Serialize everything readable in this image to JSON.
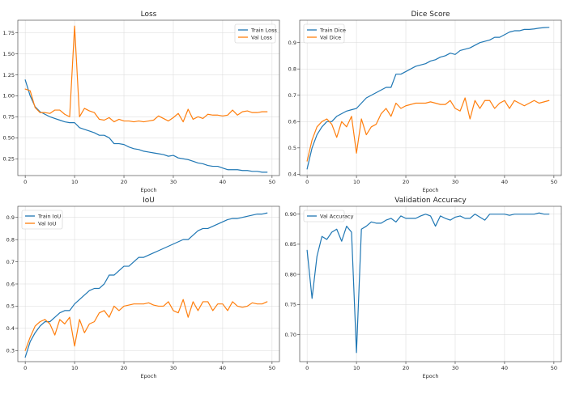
{
  "colors": {
    "train": "#1f77b4",
    "val": "#ff7f0e"
  },
  "chart_data": [
    {
      "type": "line",
      "title": "Loss",
      "xlabel": "Epoch",
      "ylabel": "",
      "xlim": [
        -1.5,
        51.5
      ],
      "ylim": [
        0.05,
        1.9
      ],
      "xticks": [
        0,
        10,
        20,
        30,
        40,
        50
      ],
      "yticks": [
        0.25,
        0.5,
        0.75,
        1.0,
        1.25,
        1.5,
        1.75
      ],
      "ytick_labels": [
        "0.25",
        "0.50",
        "0.75",
        "1.00",
        "1.25",
        "1.50",
        "1.75"
      ],
      "grid": true,
      "legend_position": "top-right",
      "series": [
        {
          "name": "Train Loss",
          "color": "#1f77b4",
          "values": [
            1.19,
            1.0,
            0.87,
            0.81,
            0.78,
            0.75,
            0.73,
            0.71,
            0.69,
            0.68,
            0.68,
            0.62,
            0.6,
            0.58,
            0.56,
            0.53,
            0.53,
            0.5,
            0.43,
            0.43,
            0.42,
            0.39,
            0.37,
            0.36,
            0.34,
            0.33,
            0.32,
            0.31,
            0.3,
            0.28,
            0.29,
            0.26,
            0.25,
            0.24,
            0.22,
            0.2,
            0.19,
            0.17,
            0.16,
            0.16,
            0.14,
            0.12,
            0.12,
            0.12,
            0.11,
            0.11,
            0.1,
            0.1,
            0.09,
            0.09
          ]
        },
        {
          "name": "Val Loss",
          "color": "#ff7f0e",
          "values": [
            1.08,
            1.06,
            0.86,
            0.8,
            0.8,
            0.79,
            0.83,
            0.83,
            0.78,
            0.75,
            1.83,
            0.75,
            0.85,
            0.82,
            0.8,
            0.72,
            0.71,
            0.74,
            0.69,
            0.72,
            0.7,
            0.7,
            0.69,
            0.7,
            0.69,
            0.7,
            0.71,
            0.76,
            0.73,
            0.7,
            0.74,
            0.79,
            0.69,
            0.84,
            0.72,
            0.75,
            0.73,
            0.78,
            0.77,
            0.77,
            0.76,
            0.77,
            0.83,
            0.77,
            0.81,
            0.82,
            0.8,
            0.8,
            0.81,
            0.81
          ]
        }
      ]
    },
    {
      "type": "line",
      "title": "Dice Score",
      "xlabel": "Epoch",
      "ylabel": "",
      "xlim": [
        -1.5,
        51.5
      ],
      "ylim": [
        0.395,
        0.985
      ],
      "xticks": [
        0,
        10,
        20,
        30,
        40,
        50
      ],
      "yticks": [
        0.4,
        0.5,
        0.6,
        0.7,
        0.8,
        0.9
      ],
      "ytick_labels": [
        "0.4",
        "0.5",
        "0.6",
        "0.7",
        "0.8",
        "0.9"
      ],
      "grid": true,
      "legend_position": "top-left",
      "series": [
        {
          "name": "Train Dice",
          "color": "#1f77b4",
          "values": [
            0.42,
            0.5,
            0.55,
            0.58,
            0.6,
            0.6,
            0.62,
            0.63,
            0.64,
            0.645,
            0.65,
            0.67,
            0.69,
            0.7,
            0.71,
            0.72,
            0.73,
            0.73,
            0.78,
            0.78,
            0.79,
            0.8,
            0.81,
            0.815,
            0.82,
            0.83,
            0.835,
            0.845,
            0.85,
            0.86,
            0.855,
            0.87,
            0.875,
            0.88,
            0.89,
            0.9,
            0.905,
            0.91,
            0.92,
            0.92,
            0.93,
            0.94,
            0.945,
            0.945,
            0.95,
            0.95,
            0.952,
            0.955,
            0.957,
            0.958
          ]
        },
        {
          "name": "Val Dice",
          "color": "#ff7f0e",
          "values": [
            0.45,
            0.53,
            0.58,
            0.6,
            0.61,
            0.59,
            0.54,
            0.6,
            0.58,
            0.62,
            0.48,
            0.61,
            0.55,
            0.58,
            0.59,
            0.63,
            0.65,
            0.62,
            0.67,
            0.65,
            0.66,
            0.665,
            0.67,
            0.67,
            0.67,
            0.675,
            0.67,
            0.665,
            0.665,
            0.68,
            0.65,
            0.64,
            0.69,
            0.61,
            0.68,
            0.65,
            0.68,
            0.68,
            0.65,
            0.67,
            0.68,
            0.65,
            0.68,
            0.67,
            0.66,
            0.67,
            0.68,
            0.67,
            0.675,
            0.68
          ]
        }
      ]
    },
    {
      "type": "line",
      "title": "IoU",
      "xlabel": "Epoch",
      "ylabel": "",
      "xlim": [
        -1.5,
        51.5
      ],
      "ylim": [
        0.25,
        0.95
      ],
      "xticks": [
        0,
        10,
        20,
        30,
        40,
        50
      ],
      "yticks": [
        0.3,
        0.4,
        0.5,
        0.6,
        0.7,
        0.8,
        0.9
      ],
      "ytick_labels": [
        "0.3",
        "0.4",
        "0.5",
        "0.6",
        "0.7",
        "0.8",
        "0.9"
      ],
      "grid": true,
      "legend_position": "top-left",
      "series": [
        {
          "name": "Train IoU",
          "color": "#1f77b4",
          "values": [
            0.27,
            0.34,
            0.38,
            0.41,
            0.43,
            0.43,
            0.45,
            0.47,
            0.48,
            0.48,
            0.51,
            0.53,
            0.55,
            0.57,
            0.58,
            0.58,
            0.6,
            0.64,
            0.64,
            0.66,
            0.68,
            0.68,
            0.7,
            0.72,
            0.72,
            0.73,
            0.74,
            0.75,
            0.76,
            0.77,
            0.78,
            0.79,
            0.8,
            0.8,
            0.82,
            0.84,
            0.85,
            0.85,
            0.86,
            0.87,
            0.88,
            0.89,
            0.895,
            0.895,
            0.9,
            0.905,
            0.91,
            0.915,
            0.915,
            0.92
          ]
        },
        {
          "name": "Val IoU",
          "color": "#ff7f0e",
          "values": [
            0.3,
            0.36,
            0.41,
            0.43,
            0.44,
            0.42,
            0.37,
            0.44,
            0.42,
            0.45,
            0.32,
            0.44,
            0.38,
            0.42,
            0.43,
            0.47,
            0.48,
            0.45,
            0.5,
            0.48,
            0.5,
            0.505,
            0.51,
            0.51,
            0.51,
            0.515,
            0.505,
            0.5,
            0.5,
            0.52,
            0.48,
            0.47,
            0.53,
            0.45,
            0.52,
            0.48,
            0.52,
            0.52,
            0.48,
            0.51,
            0.51,
            0.48,
            0.52,
            0.5,
            0.495,
            0.5,
            0.515,
            0.51,
            0.51,
            0.52
          ]
        }
      ]
    },
    {
      "type": "line",
      "title": "Validation Accuracy",
      "xlabel": "Epoch",
      "ylabel": "",
      "xlim": [
        -1.5,
        51.5
      ],
      "ylim": [
        0.655,
        0.913
      ],
      "xticks": [
        0,
        10,
        20,
        30,
        40,
        50
      ],
      "yticks": [
        0.7,
        0.75,
        0.8,
        0.85,
        0.9
      ],
      "ytick_labels": [
        "0.70",
        "0.75",
        "0.80",
        "0.85",
        "0.90"
      ],
      "grid": true,
      "legend_position": "top-left",
      "series": [
        {
          "name": "Val Accuracy",
          "color": "#1f77b4",
          "values": [
            0.84,
            0.76,
            0.83,
            0.863,
            0.858,
            0.87,
            0.875,
            0.855,
            0.88,
            0.87,
            0.67,
            0.875,
            0.88,
            0.887,
            0.885,
            0.885,
            0.89,
            0.893,
            0.887,
            0.897,
            0.893,
            0.893,
            0.893,
            0.897,
            0.9,
            0.897,
            0.88,
            0.897,
            0.893,
            0.89,
            0.895,
            0.897,
            0.893,
            0.893,
            0.9,
            0.895,
            0.89,
            0.9,
            0.9,
            0.9,
            0.9,
            0.898,
            0.9,
            0.9,
            0.9,
            0.9,
            0.9,
            0.902,
            0.9,
            0.9
          ]
        }
      ]
    }
  ]
}
